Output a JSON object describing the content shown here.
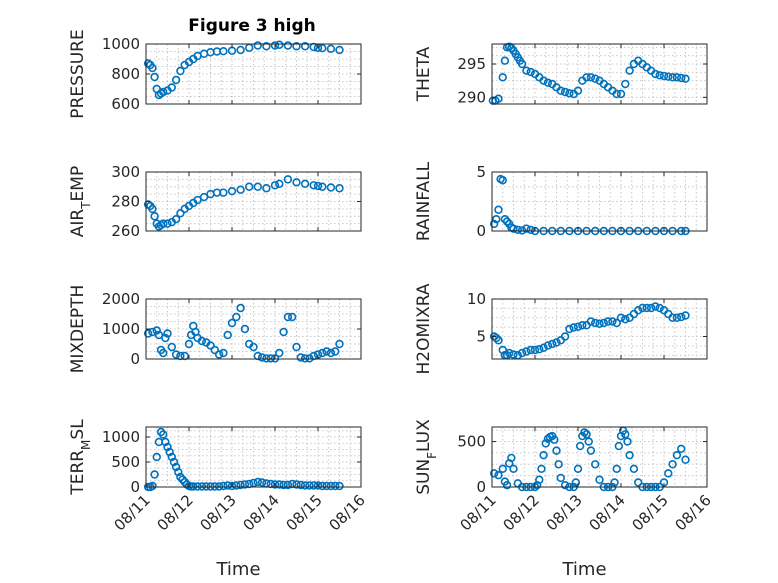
{
  "figure": {
    "title": "Figure 3 high"
  },
  "chart_data": [
    {
      "type": "scatter",
      "ylabel": "PRESSURE",
      "xlabel": "",
      "ylim": [
        600,
        1000
      ],
      "yticks": [
        600,
        800,
        1000
      ],
      "x": [
        0.05,
        0.1,
        0.15,
        0.2,
        0.25,
        0.3,
        0.35,
        0.4,
        0.5,
        0.6,
        0.7,
        0.8,
        0.9,
        1.0,
        1.1,
        1.2,
        1.35,
        1.5,
        1.65,
        1.8,
        2.0,
        2.2,
        2.4,
        2.6,
        2.8,
        3.0,
        3.1,
        3.3,
        3.5,
        3.7,
        3.9,
        4.0,
        4.1,
        4.3,
        4.5
      ],
      "y": [
        870,
        860,
        840,
        780,
        700,
        660,
        670,
        680,
        690,
        710,
        760,
        820,
        860,
        880,
        900,
        920,
        935,
        945,
        950,
        952,
        955,
        960,
        975,
        990,
        985,
        990,
        995,
        990,
        985,
        985,
        980,
        975,
        972,
        968,
        960
      ]
    },
    {
      "type": "scatter",
      "ylabel": "THETA",
      "xlabel": "",
      "ylim": [
        289,
        298
      ],
      "yticks": [
        290,
        295
      ],
      "x": [
        0.02,
        0.08,
        0.15,
        0.25,
        0.3,
        0.35,
        0.4,
        0.45,
        0.5,
        0.55,
        0.6,
        0.65,
        0.7,
        0.8,
        0.9,
        1.0,
        1.1,
        1.2,
        1.3,
        1.4,
        1.5,
        1.6,
        1.7,
        1.8,
        1.9,
        2.0,
        2.1,
        2.2,
        2.3,
        2.4,
        2.5,
        2.6,
        2.7,
        2.8,
        2.9,
        3.0,
        3.1,
        3.2,
        3.3,
        3.4,
        3.5,
        3.6,
        3.7,
        3.8,
        3.9,
        4.0,
        4.1,
        4.2,
        4.3,
        4.4,
        4.5
      ],
      "y": [
        289.5,
        289.5,
        289.8,
        293,
        295.5,
        297.5,
        297.6,
        297.4,
        297,
        296.5,
        296,
        295.5,
        295,
        294,
        293.8,
        293.5,
        293,
        292.5,
        292.2,
        292,
        291.5,
        291,
        290.8,
        290.6,
        290.5,
        291,
        292.5,
        293,
        293,
        292.8,
        292.5,
        292,
        291.5,
        291,
        290.5,
        290.5,
        292,
        294,
        295,
        295.5,
        295,
        294.5,
        294,
        293.5,
        293.3,
        293.2,
        293.1,
        293,
        293,
        292.9,
        292.8
      ]
    },
    {
      "type": "scatter",
      "ylabel": "AIR_TEMP",
      "xlabel": "",
      "ylim": [
        260,
        300
      ],
      "yticks": [
        260,
        280,
        300
      ],
      "x": [
        0.05,
        0.1,
        0.15,
        0.2,
        0.25,
        0.3,
        0.35,
        0.4,
        0.5,
        0.6,
        0.7,
        0.8,
        0.9,
        1.0,
        1.1,
        1.2,
        1.35,
        1.5,
        1.65,
        1.8,
        2.0,
        2.2,
        2.4,
        2.6,
        2.8,
        3.0,
        3.1,
        3.3,
        3.5,
        3.7,
        3.9,
        4.0,
        4.1,
        4.3,
        4.5
      ],
      "y": [
        278,
        277,
        275,
        270,
        265,
        263,
        264,
        265,
        265,
        266,
        268,
        272,
        275,
        277,
        279,
        281,
        283,
        285,
        286,
        286,
        287,
        288,
        290,
        290,
        289,
        291,
        292,
        295,
        293,
        292,
        291,
        290.5,
        290,
        289.5,
        289
      ]
    },
    {
      "type": "scatter",
      "ylabel": "RAINFALL",
      "xlabel": "",
      "ylim": [
        0,
        5
      ],
      "yticks": [
        0,
        5
      ],
      "x": [
        0.05,
        0.1,
        0.15,
        0.2,
        0.25,
        0.3,
        0.35,
        0.4,
        0.45,
        0.5,
        0.6,
        0.7,
        0.8,
        0.9,
        1.0,
        1.2,
        1.4,
        1.6,
        1.8,
        2.0,
        2.2,
        2.4,
        2.6,
        2.8,
        3.0,
        3.2,
        3.4,
        3.6,
        3.8,
        4.0,
        4.2,
        4.4,
        4.5
      ],
      "y": [
        0.6,
        1.0,
        1.8,
        4.4,
        4.3,
        1.0,
        0.8,
        0.6,
        0.3,
        0.2,
        0.1,
        0.05,
        0.2,
        0.1,
        0,
        0,
        0,
        0,
        0,
        0,
        0,
        0,
        0,
        0,
        0,
        0,
        0,
        0,
        0,
        0,
        0,
        0,
        0
      ]
    },
    {
      "type": "scatter",
      "ylabel": "MIXDEPTH",
      "xlabel": "",
      "ylim": [
        0,
        2000
      ],
      "yticks": [
        0,
        1000,
        2000
      ],
      "x": [
        0.05,
        0.15,
        0.25,
        0.3,
        0.35,
        0.4,
        0.45,
        0.5,
        0.6,
        0.7,
        0.8,
        0.9,
        1.0,
        1.05,
        1.1,
        1.15,
        1.2,
        1.3,
        1.4,
        1.5,
        1.6,
        1.7,
        1.8,
        1.9,
        2.0,
        2.1,
        2.2,
        2.3,
        2.4,
        2.5,
        2.6,
        2.7,
        2.8,
        2.9,
        3.0,
        3.1,
        3.2,
        3.3,
        3.4,
        3.5,
        3.6,
        3.7,
        3.8,
        3.9,
        4.0,
        4.1,
        4.2,
        4.3,
        4.4,
        4.5
      ],
      "y": [
        850,
        900,
        950,
        800,
        300,
        200,
        700,
        850,
        400,
        150,
        100,
        100,
        500,
        800,
        1100,
        900,
        700,
        600,
        550,
        450,
        300,
        150,
        200,
        800,
        1200,
        1400,
        1700,
        1000,
        500,
        400,
        100,
        50,
        20,
        20,
        20,
        200,
        900,
        1400,
        1400,
        400,
        50,
        20,
        20,
        100,
        150,
        200,
        250,
        200,
        250,
        500
      ]
    },
    {
      "type": "scatter",
      "ylabel": "H2OMIXRA",
      "xlabel": "",
      "ylim": [
        2,
        10
      ],
      "yticks": [
        5,
        10
      ],
      "x": [
        0.05,
        0.1,
        0.15,
        0.25,
        0.3,
        0.35,
        0.4,
        0.5,
        0.6,
        0.7,
        0.8,
        0.9,
        1.0,
        1.1,
        1.2,
        1.3,
        1.4,
        1.5,
        1.6,
        1.7,
        1.8,
        1.9,
        2.0,
        2.1,
        2.2,
        2.3,
        2.4,
        2.5,
        2.6,
        2.7,
        2.8,
        2.9,
        3.0,
        3.1,
        3.2,
        3.3,
        3.4,
        3.5,
        3.6,
        3.7,
        3.8,
        3.9,
        4.0,
        4.1,
        4.2,
        4.3,
        4.4,
        4.5
      ],
      "y": [
        5,
        4.8,
        4.5,
        3.2,
        2.5,
        2.5,
        2.8,
        2.6,
        2.5,
        2.8,
        3,
        3.2,
        3.2,
        3.3,
        3.5,
        3.8,
        4,
        4.2,
        4.5,
        5,
        6,
        6.2,
        6.3,
        6.5,
        6.5,
        7,
        6.8,
        6.7,
        6.8,
        7,
        7,
        6.8,
        7.5,
        7.3,
        7.5,
        8,
        8.5,
        8.8,
        8.8,
        8.8,
        9,
        8.8,
        8.5,
        8,
        7.5,
        7.5,
        7.6,
        7.8
      ]
    },
    {
      "type": "scatter",
      "ylabel": "TERR_MSL",
      "xlabel": "Time",
      "ylim": [
        0,
        1200
      ],
      "yticks": [
        0,
        500,
        1000
      ],
      "xticklabels": [
        "08/11",
        "08/12",
        "08/13",
        "08/14",
        "08/15",
        "08/16"
      ],
      "x": [
        0.05,
        0.1,
        0.15,
        0.2,
        0.25,
        0.3,
        0.35,
        0.4,
        0.45,
        0.5,
        0.55,
        0.6,
        0.65,
        0.7,
        0.75,
        0.8,
        0.85,
        0.9,
        0.95,
        1.0,
        1.05,
        1.1,
        1.2,
        1.3,
        1.4,
        1.5,
        1.6,
        1.7,
        1.8,
        1.9,
        2.0,
        2.1,
        2.2,
        2.3,
        2.4,
        2.5,
        2.6,
        2.7,
        2.8,
        2.9,
        3.0,
        3.1,
        3.2,
        3.3,
        3.4,
        3.5,
        3.6,
        3.7,
        3.8,
        3.9,
        4.0,
        4.1,
        4.2,
        4.3,
        4.4,
        4.5
      ],
      "y": [
        0,
        0,
        20,
        250,
        600,
        900,
        1100,
        1050,
        900,
        800,
        700,
        600,
        500,
        400,
        300,
        200,
        150,
        100,
        50,
        20,
        10,
        10,
        10,
        10,
        10,
        10,
        10,
        10,
        20,
        30,
        20,
        30,
        40,
        50,
        60,
        80,
        100,
        90,
        70,
        60,
        50,
        50,
        40,
        40,
        60,
        50,
        40,
        30,
        30,
        30,
        30,
        20,
        20,
        20,
        20,
        20
      ]
    },
    {
      "type": "scatter",
      "ylabel": "SUN_FLUX",
      "xlabel": "Time",
      "ylim": [
        0,
        660
      ],
      "yticks": [
        0,
        500
      ],
      "xticklabels": [
        "08/11",
        "08/12",
        "08/13",
        "08/14",
        "08/15",
        "08/16"
      ],
      "x": [
        0.05,
        0.15,
        0.25,
        0.3,
        0.35,
        0.4,
        0.45,
        0.5,
        0.6,
        0.7,
        0.8,
        0.9,
        1.0,
        1.05,
        1.1,
        1.15,
        1.2,
        1.25,
        1.3,
        1.35,
        1.4,
        1.45,
        1.5,
        1.55,
        1.6,
        1.7,
        1.8,
        1.9,
        1.95,
        2.0,
        2.05,
        2.1,
        2.15,
        2.2,
        2.25,
        2.3,
        2.4,
        2.5,
        2.6,
        2.7,
        2.8,
        2.85,
        2.9,
        2.95,
        3.0,
        3.05,
        3.1,
        3.15,
        3.2,
        3.3,
        3.4,
        3.5,
        3.6,
        3.7,
        3.8,
        3.9,
        4.0,
        4.1,
        4.2,
        4.3,
        4.4,
        4.5
      ],
      "y": [
        150,
        130,
        200,
        60,
        20,
        260,
        320,
        200,
        40,
        0,
        0,
        0,
        0,
        20,
        80,
        200,
        350,
        480,
        530,
        550,
        560,
        520,
        400,
        250,
        100,
        20,
        0,
        0,
        50,
        200,
        450,
        560,
        600,
        580,
        500,
        400,
        250,
        80,
        0,
        0,
        0,
        50,
        200,
        450,
        560,
        620,
        580,
        500,
        350,
        200,
        50,
        0,
        0,
        0,
        0,
        0,
        50,
        150,
        250,
        350,
        420,
        300
      ]
    }
  ]
}
